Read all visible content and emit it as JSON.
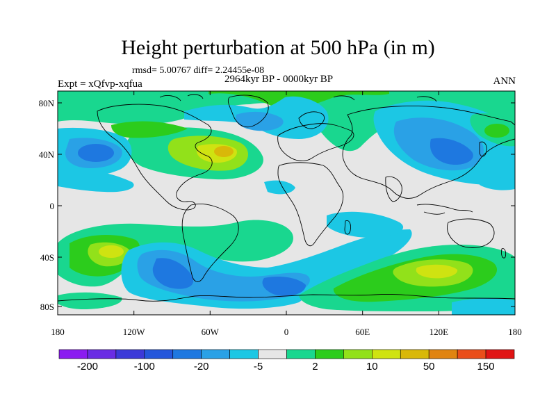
{
  "title": "Height perturbation at 500 hPa (in m)",
  "stats": "rmsd= 5.00767 diff= 2.24455e-08",
  "experiment": "Expt = xQfvp-xqfua",
  "period": "2964kyr BP - 0000kyr BP",
  "season": "ANN",
  "lat_ticks": [
    "80N",
    "40N",
    "0",
    "40S",
    "80S"
  ],
  "lon_ticks": [
    "180",
    "120W",
    "60W",
    "0",
    "60E",
    "120E",
    "180"
  ],
  "colorbar": {
    "colors": [
      "#8b1cf0",
      "#6a2ce4",
      "#3c39d8",
      "#2456db",
      "#1e78e0",
      "#2aa1e6",
      "#1cc7e4",
      "#e6e6e6",
      "#19d78f",
      "#2ccc1c",
      "#92e11a",
      "#cfe311",
      "#d9b809",
      "#e08412",
      "#ea4e1a",
      "#e01414"
    ],
    "labels": [
      "-200",
      "-100",
      "-20",
      "-5",
      "2",
      "10",
      "50",
      "150"
    ]
  },
  "colors": {
    "background_field": "#e6e6e6",
    "coastline": "#000000"
  }
}
